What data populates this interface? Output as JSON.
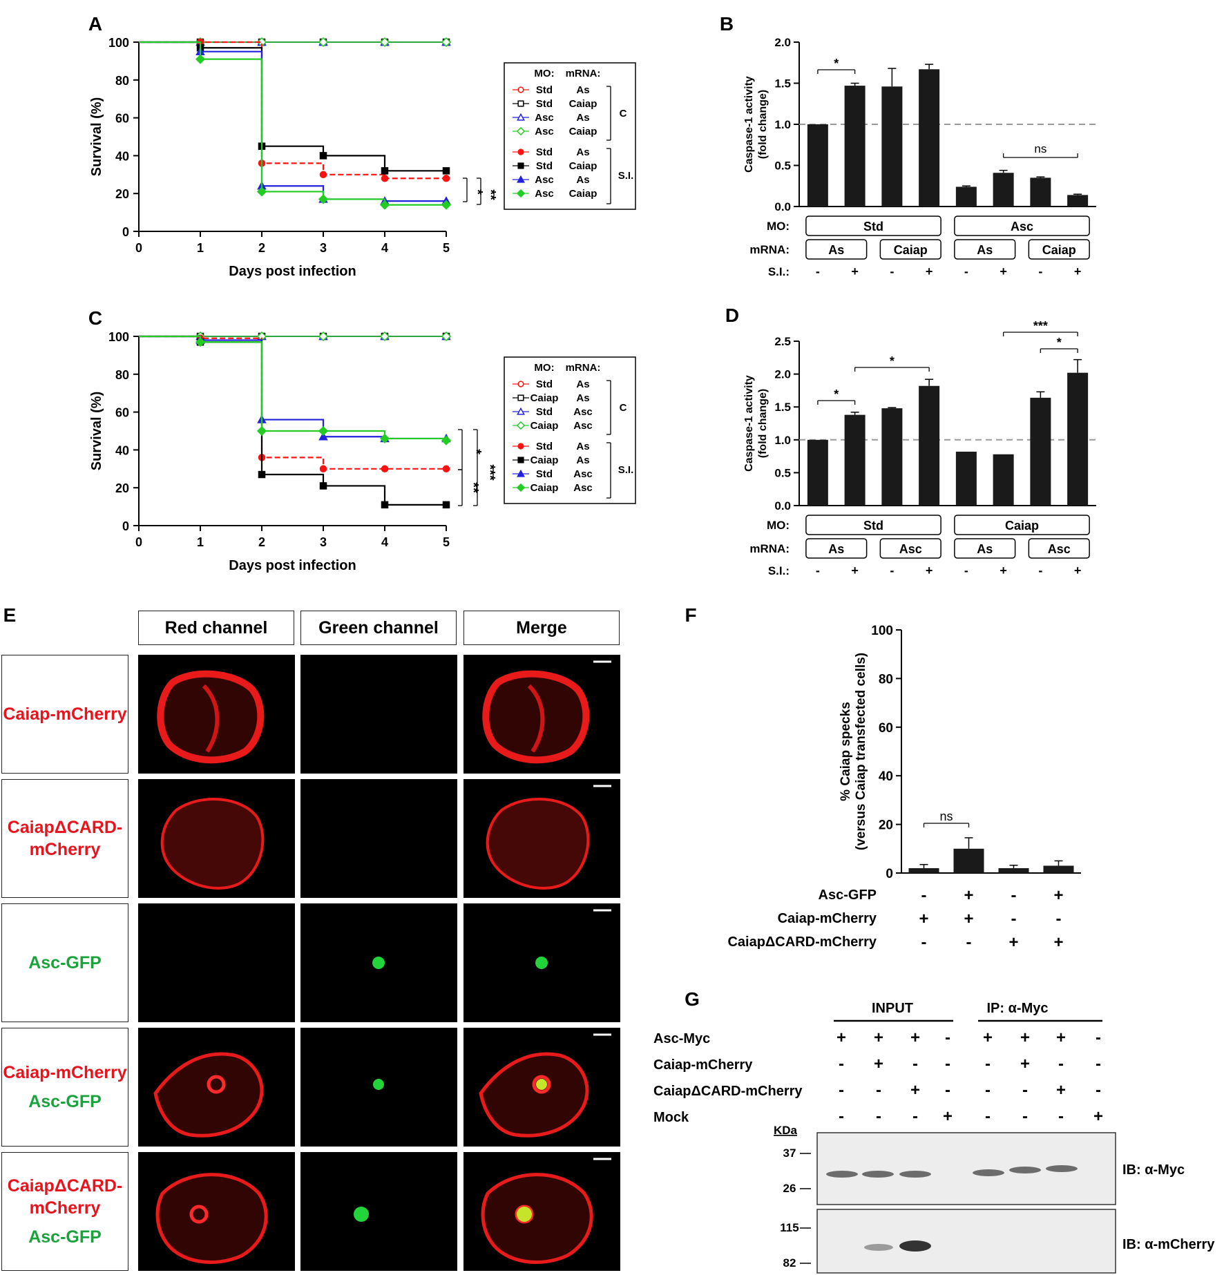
{
  "panels": {
    "A": "A",
    "B": "B",
    "C": "C",
    "D": "D",
    "E": "E",
    "F": "F",
    "G": "G"
  },
  "survival_axes": {
    "ylabel": "Survival (%)",
    "xlabel": "Days post infection",
    "yticks": [
      "0",
      "20",
      "40",
      "60",
      "80",
      "100"
    ],
    "xticks": [
      "0",
      "1",
      "2",
      "3",
      "4",
      "5"
    ]
  },
  "caspase_axes": {
    "ylabel1": "Caspase-1 activity",
    "ylabel2": "(fold change)"
  },
  "legend_A": {
    "head_mo": "MO:",
    "head_mrna": "mRNA:",
    "rows": [
      {
        "mo": "Std",
        "mrna": "As"
      },
      {
        "mo": "Std",
        "mrna": "Caiap"
      },
      {
        "mo": "Asc",
        "mrna": "As"
      },
      {
        "mo": "Asc",
        "mrna": "Caiap"
      },
      {
        "mo": "Std",
        "mrna": "As"
      },
      {
        "mo": "Std",
        "mrna": "Caiap"
      },
      {
        "mo": "Asc",
        "mrna": "As"
      },
      {
        "mo": "Asc",
        "mrna": "Caiap"
      }
    ],
    "group_c": "C",
    "group_si": "S.I."
  },
  "legend_C": {
    "head_mo": "MO:",
    "head_mrna": "mRNA:",
    "rows": [
      {
        "mo": "Std",
        "mrna": "As"
      },
      {
        "mo": "Caiap",
        "mrna": "As"
      },
      {
        "mo": "Std",
        "mrna": "Asc"
      },
      {
        "mo": "Caiap",
        "mrna": "Asc"
      },
      {
        "mo": "Std",
        "mrna": "As"
      },
      {
        "mo": "Caiap",
        "mrna": "As"
      },
      {
        "mo": "Std",
        "mrna": "Asc"
      },
      {
        "mo": "Caiap",
        "mrna": "Asc"
      }
    ],
    "group_c": "C",
    "group_si": "S.I."
  },
  "sig_A": [
    "*",
    "**"
  ],
  "sig_C": [
    "*",
    "**",
    "***"
  ],
  "rowlabels": {
    "mo": "MO:",
    "mrna": "mRNA:",
    "si": "S.I.:"
  },
  "B_boxes": {
    "mo": [
      "Std",
      "Asc"
    ],
    "mrna": [
      "As",
      "Caiap",
      "As",
      "Caiap"
    ],
    "si": [
      "-",
      "+",
      "-",
      "+",
      "-",
      "+",
      "-",
      "+"
    ]
  },
  "D_boxes": {
    "mo": [
      "Std",
      "Caiap"
    ],
    "mrna": [
      "As",
      "Asc",
      "As",
      "Asc"
    ],
    "si": [
      "-",
      "+",
      "-",
      "+",
      "-",
      "+",
      "-",
      "+"
    ]
  },
  "sig_B": [
    "*",
    "ns"
  ],
  "sig_D": [
    "*",
    "*",
    "***",
    "*"
  ],
  "E": {
    "headers": [
      "Red channel",
      "Green channel",
      "Merge"
    ],
    "rows": [
      {
        "lines": [
          {
            "text": "Caiap-mCherry",
            "color": "red"
          }
        ]
      },
      {
        "lines": [
          {
            "text": "CaiapΔCARD-",
            "color": "red"
          },
          {
            "text": "mCherry",
            "color": "red"
          }
        ]
      },
      {
        "lines": [
          {
            "text": "Asc-GFP",
            "color": "green"
          }
        ]
      },
      {
        "lines": [
          {
            "text": "Caiap-mCherry",
            "color": "red"
          },
          {
            "text": "Asc-GFP",
            "color": "green"
          }
        ]
      },
      {
        "lines": [
          {
            "text": "CaiapΔCARD-",
            "color": "red"
          },
          {
            "text": "mCherry",
            "color": "red"
          },
          {
            "text": "Asc-GFP",
            "color": "green"
          }
        ]
      }
    ]
  },
  "F": {
    "ylabel1": "% Caiap specks",
    "ylabel2": "(versus Caiap transfected cells)",
    "yticks": [
      "0",
      "20",
      "40",
      "60",
      "80",
      "100"
    ],
    "rows": [
      {
        "label": "Asc-GFP",
        "signs": [
          "-",
          "+",
          "-",
          "+"
        ]
      },
      {
        "label": "Caiap-mCherry",
        "signs": [
          "+",
          "+",
          "-",
          "-"
        ]
      },
      {
        "label": "CaiapΔCARD-mCherry",
        "signs": [
          "-",
          "-",
          "+",
          "+"
        ]
      }
    ],
    "sig": "ns"
  },
  "G": {
    "input": "INPUT",
    "ip": "IP: α-Myc",
    "rows": [
      {
        "label": "Asc-Myc",
        "signs": [
          "+",
          "+",
          "+",
          "-",
          "+",
          "+",
          "+",
          "-"
        ]
      },
      {
        "label": "Caiap-mCherry",
        "signs": [
          "-",
          "+",
          "-",
          "-",
          "-",
          "+",
          "-",
          "-"
        ]
      },
      {
        "label": "CaiapΔCARD-mCherry",
        "signs": [
          "-",
          "-",
          "+",
          "-",
          "-",
          "-",
          "+",
          "-"
        ]
      },
      {
        "label": "Mock",
        "signs": [
          "-",
          "-",
          "-",
          "+",
          "-",
          "-",
          "-",
          "+"
        ]
      }
    ],
    "kda": "KDa",
    "blot1_marks": [
      "37",
      "26"
    ],
    "blot2_marks": [
      "115",
      "82"
    ],
    "ib1": "IB: α-Myc",
    "ib2": "IB: α-mCherry"
  },
  "chart_data": [
    {
      "panel": "A",
      "type": "line",
      "xlabel": "Days post infection",
      "ylabel": "Survival (%)",
      "xlim": [
        0,
        5
      ],
      "ylim": [
        0,
        100
      ],
      "x": [
        0,
        1,
        2,
        3,
        4,
        5
      ],
      "series": [
        {
          "name": "Std As C",
          "values": [
            100,
            100,
            100,
            100,
            100,
            100
          ]
        },
        {
          "name": "Std Caiap C",
          "values": [
            100,
            100,
            100,
            100,
            100,
            100
          ]
        },
        {
          "name": "Asc As C",
          "values": [
            100,
            100,
            100,
            100,
            100,
            100
          ]
        },
        {
          "name": "Asc Caiap C",
          "values": [
            100,
            100,
            100,
            100,
            100,
            100
          ]
        },
        {
          "name": "Std As S.I.",
          "values": [
            100,
            100,
            36,
            30,
            28,
            28
          ]
        },
        {
          "name": "Std Caiap S.I.",
          "values": [
            100,
            97,
            45,
            40,
            32,
            32
          ]
        },
        {
          "name": "Asc As S.I.",
          "values": [
            100,
            95,
            24,
            17,
            16,
            16
          ]
        },
        {
          "name": "Asc Caiap S.I.",
          "values": [
            100,
            91,
            21,
            17,
            14,
            14
          ]
        }
      ]
    },
    {
      "panel": "B",
      "type": "bar",
      "ylabel": "Caspase-1 activity (fold change)",
      "ylim": [
        0,
        2.0
      ],
      "yticks": [
        "0.0",
        "0.5",
        "1.0",
        "1.5",
        "2.0"
      ],
      "values": [
        1.0,
        1.47,
        1.46,
        1.67,
        0.24,
        0.41,
        0.35,
        0.14
      ],
      "errors": [
        0,
        0.03,
        0.22,
        0.06,
        0.01,
        0.03,
        0.01,
        0.01
      ]
    },
    {
      "panel": "C",
      "type": "line",
      "xlabel": "Days post infection",
      "ylabel": "Survival (%)",
      "xlim": [
        0,
        5
      ],
      "ylim": [
        0,
        100
      ],
      "x": [
        0,
        1,
        2,
        3,
        4,
        5
      ],
      "series": [
        {
          "name": "Std As C",
          "values": [
            100,
            100,
            100,
            100,
            100,
            100
          ]
        },
        {
          "name": "Caiap As C",
          "values": [
            100,
            100,
            100,
            100,
            100,
            100
          ]
        },
        {
          "name": "Std Asc C",
          "values": [
            100,
            100,
            100,
            100,
            100,
            100
          ]
        },
        {
          "name": "Caiap Asc C",
          "values": [
            100,
            100,
            100,
            100,
            100,
            100
          ]
        },
        {
          "name": "Std As S.I.",
          "values": [
            100,
            99,
            36,
            30,
            30,
            30
          ]
        },
        {
          "name": "Caiap As S.I.",
          "values": [
            100,
            97,
            27,
            21,
            11,
            11
          ]
        },
        {
          "name": "Std Asc S.I.",
          "values": [
            100,
            98,
            56,
            47,
            46,
            46
          ]
        },
        {
          "name": "Caiap Asc S.I.",
          "values": [
            100,
            97,
            50,
            50,
            46,
            45
          ]
        }
      ]
    },
    {
      "panel": "D",
      "type": "bar",
      "ylabel": "Caspase-1 activity (fold change)",
      "ylim": [
        0,
        2.5
      ],
      "yticks": [
        "0.0",
        "0.5",
        "1.0",
        "1.5",
        "2.0",
        "2.5"
      ],
      "values": [
        1.0,
        1.38,
        1.48,
        1.82,
        0.82,
        0.78,
        1.64,
        2.02
      ],
      "errors": [
        0,
        0.04,
        0.01,
        0.1,
        0,
        0,
        0.09,
        0.2
      ]
    },
    {
      "panel": "F",
      "type": "bar",
      "ylabel": "% Caiap specks (versus Caiap transfected cells)",
      "ylim": [
        0,
        100
      ],
      "values": [
        2,
        10,
        2,
        3
      ],
      "errors": [
        1.5,
        4.5,
        1.2,
        2
      ]
    }
  ]
}
